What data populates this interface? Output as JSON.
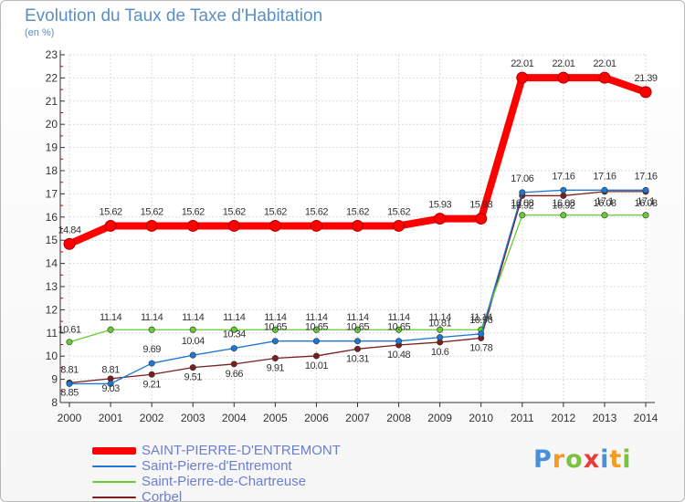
{
  "header": {
    "title": "Evolution du Taux de Taxe d'Habitation",
    "subtitle": "(en %)"
  },
  "brand": {
    "letters": [
      "P",
      "r",
      "o",
      "x",
      "i",
      "t",
      "i"
    ],
    "colors": [
      "#4a90d9",
      "#f59a23",
      "#7cc242",
      "#e63c3c",
      "#4a90d9",
      "#f59a23",
      "#7cc242"
    ]
  },
  "chart_data": {
    "type": "line",
    "x": [
      "2000",
      "2001",
      "2002",
      "2003",
      "2004",
      "2005",
      "2006",
      "2007",
      "2008",
      "2009",
      "2010",
      "2011",
      "2012",
      "2013",
      "2014"
    ],
    "ylim": [
      8,
      23
    ],
    "yticks": [
      "8",
      "9",
      "10",
      "11",
      "12",
      "13",
      "14",
      "15",
      "16",
      "17",
      "18",
      "19",
      "20",
      "21",
      "22",
      "23"
    ],
    "grid": true,
    "legend": "bottom-left",
    "series": [
      {
        "name": "SAINT-PIERRE-D'ENTREMONT",
        "color": "#ff0000",
        "values": [
          14.84,
          15.62,
          15.62,
          15.62,
          15.62,
          15.62,
          15.62,
          15.62,
          15.62,
          15.93,
          15.93,
          22.01,
          22.01,
          22.01,
          21.39
        ],
        "labels": [
          "14.84",
          "15.62",
          "15.62",
          "15.62",
          "15.62",
          "15.62",
          "15.62",
          "15.62",
          "15.62",
          "15.93",
          "15.93",
          "22.01",
          "22.01",
          "22.01",
          "21.39"
        ]
      },
      {
        "name": "Saint-Pierre-d'Entremont",
        "color": "#1f77d4",
        "values": [
          8.81,
          8.81,
          9.69,
          10.04,
          10.34,
          10.65,
          10.65,
          10.65,
          10.65,
          10.81,
          10.96,
          17.06,
          17.16,
          17.16,
          17.16
        ],
        "labels": [
          "8.81",
          "8.81",
          "9.69",
          "10.04",
          "10.34",
          "10.65",
          "10.65",
          "10.65",
          "10.65",
          "10.81",
          "10.96",
          "17.06",
          "17.16",
          "17.16",
          "17.16"
        ]
      },
      {
        "name": "Saint-Pierre-de-Chartreuse",
        "color": "#66cc33",
        "values": [
          10.61,
          11.14,
          11.14,
          11.14,
          11.14,
          11.14,
          11.14,
          11.14,
          11.14,
          11.14,
          11.14,
          16.08,
          16.08,
          16.08,
          16.08
        ],
        "labels": [
          "10.61",
          "11.14",
          "11.14",
          "11.14",
          "11.14",
          "11.14",
          "11.14",
          "11.14",
          "11.14",
          "11.14",
          "11.14",
          "16.08",
          "16.08",
          "16.08",
          "16.08"
        ]
      },
      {
        "name": "Corbel",
        "color": "#7a1e1e",
        "values": [
          8.85,
          9.03,
          9.21,
          9.51,
          9.66,
          9.91,
          10.01,
          10.31,
          10.48,
          10.6,
          10.78,
          16.92,
          16.92,
          17.1,
          17.1
        ],
        "labels": [
          "8.85",
          "9.03",
          "9.21",
          "9.51",
          "9.66",
          "9.91",
          "10.01",
          "10.31",
          "10.48",
          "10.6",
          "10.78",
          "16.92",
          "16.92",
          "17.1",
          "17.1"
        ]
      }
    ]
  }
}
